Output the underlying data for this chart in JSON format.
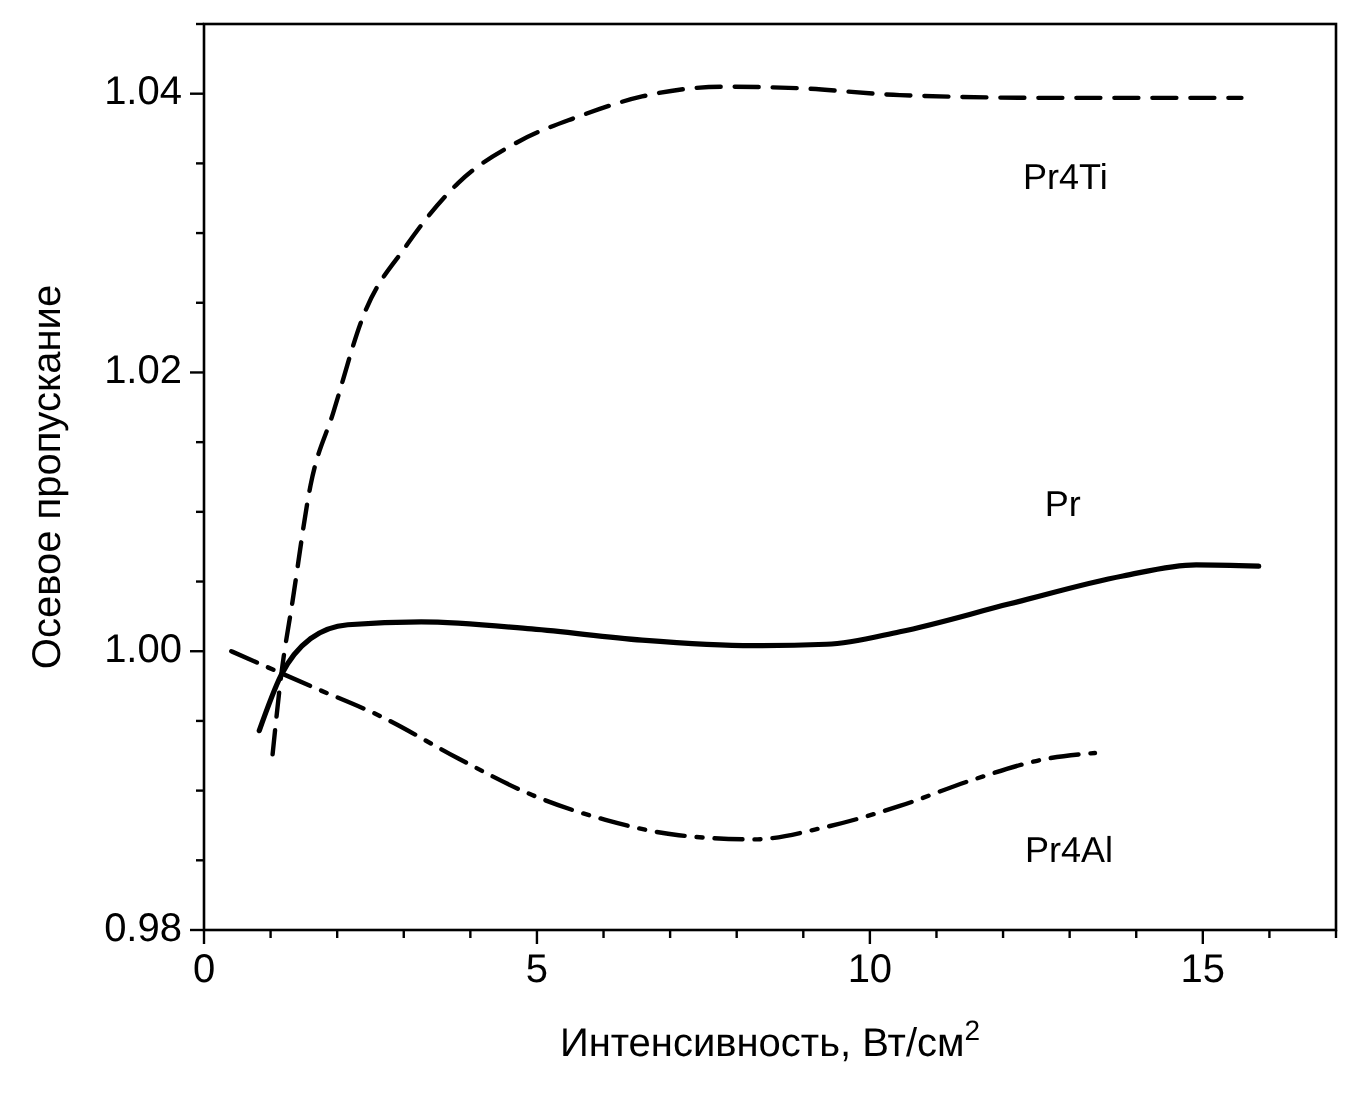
{
  "chart_data": {
    "type": "line",
    "xlabel": "Интенсивность, Вт/см$^{2}$",
    "ylabel": "Осевое пропускание",
    "xlim": [
      0,
      17
    ],
    "ylim": [
      0.98,
      1.045
    ],
    "xticks": [
      0,
      {
        "value": 1,
        "label": null
      },
      {
        "value": 2,
        "label": null
      },
      {
        "value": 3,
        "label": null
      },
      {
        "value": 4,
        "label": null
      },
      5,
      {
        "value": 6,
        "label": null
      },
      {
        "value": 7,
        "label": null
      },
      {
        "value": 8,
        "label": null
      },
      {
        "value": 9,
        "label": null
      },
      10,
      {
        "value": 11,
        "label": null
      },
      {
        "value": 12,
        "label": null
      },
      {
        "value": 13,
        "label": null
      },
      {
        "value": 14,
        "label": null
      },
      15,
      {
        "value": 16,
        "label": null
      },
      {
        "value": 17,
        "label": null
      }
    ],
    "yticks": [
      0.98,
      {
        "value": 0.985,
        "label": null
      },
      {
        "value": 0.99,
        "label": null
      },
      {
        "value": 0.995,
        "label": null
      },
      {
        "value": 1.0,
        "label": "1.00"
      },
      {
        "value": 1.005,
        "label": null
      },
      1.02,
      {
        "value": 1.01,
        "label": null
      },
      {
        "value": 1.015,
        "label": null
      },
      {
        "value": 1.025,
        "label": null
      },
      {
        "value": 1.03,
        "label": null
      },
      {
        "value": 1.035,
        "label": null
      },
      1.04,
      {
        "value": 1.045,
        "label": null
      }
    ],
    "grid": false,
    "marker": "none",
    "series": [
      {
        "name": "Pr4Ti",
        "color": "#000000",
        "line_style": "dashed",
        "x": [
          1.03,
          1.16,
          1.33,
          1.6,
          1.94,
          2.38,
          3.04,
          3.82,
          4.7,
          5.59,
          6.58,
          7.8,
          8.9,
          10.45,
          12.67,
          15.58
        ],
        "values": [
          0.9926,
          0.9983,
          1.0036,
          1.0119,
          1.0171,
          1.0239,
          1.0291,
          1.0336,
          1.0365,
          1.0383,
          1.0398,
          1.0405,
          1.0404,
          1.0399,
          1.0397,
          1.0397
        ]
      },
      {
        "name": "Pr",
        "color": "#000000",
        "line_style": "solid",
        "x": [
          0.83,
          1.16,
          1.6,
          2.16,
          3.26,
          4.92,
          6.58,
          8.24,
          9.35,
          10.45,
          12.1,
          13.8,
          14.9,
          15.84
        ],
        "values": [
          0.9943,
          0.9983,
          1.0009,
          1.0019,
          1.0021,
          1.0016,
          1.0008,
          1.0004,
          1.0005,
          1.0014,
          1.0034,
          1.0054,
          1.0062,
          1.0061
        ]
      },
      {
        "name": "Pr4Al",
        "color": "#000000",
        "line_style": "dashdot",
        "x": [
          0.41,
          1.6,
          2.71,
          3.82,
          4.92,
          6.03,
          7.13,
          8.24,
          9.35,
          10.45,
          11.56,
          12.67,
          13.38
        ],
        "values": [
          1.0,
          0.9975,
          0.9952,
          0.9923,
          0.9897,
          0.9879,
          0.9868,
          0.9865,
          0.9874,
          0.9889,
          0.9908,
          0.9923,
          0.9927
        ]
      }
    ]
  }
}
